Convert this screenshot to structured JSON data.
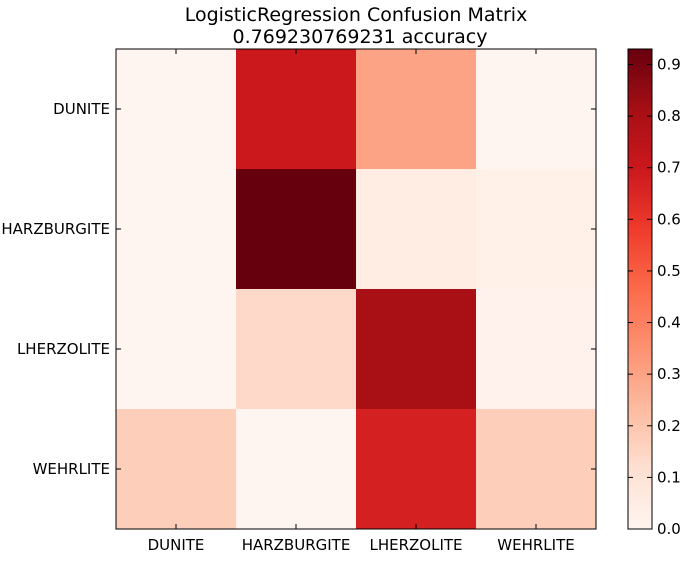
{
  "chart_data": {
    "type": "heatmap",
    "title": "LogisticRegression Confusion Matrix",
    "subtitle": "0.769230769231 accuracy",
    "row_labels": [
      "DUNITE",
      "HARZBURGITE",
      "LHERZOLITE",
      "WEHRLITE"
    ],
    "col_labels": [
      "DUNITE",
      "HARZBURGITE",
      "LHERZOLITE",
      "WEHRLITE"
    ],
    "values": [
      [
        0.0,
        0.7,
        0.3,
        0.0
      ],
      [
        0.0,
        0.93,
        0.05,
        0.03
      ],
      [
        0.0,
        0.14,
        0.8,
        0.02
      ],
      [
        0.17,
        0.0,
        0.67,
        0.17
      ]
    ],
    "colormap": "Reds",
    "colorbar": {
      "min": 0.0,
      "max": 0.93,
      "ticks": [
        "0.0",
        "0.1",
        "0.2",
        "0.3",
        "0.4",
        "0.5",
        "0.6",
        "0.7",
        "0.8",
        "0.9"
      ]
    }
  }
}
